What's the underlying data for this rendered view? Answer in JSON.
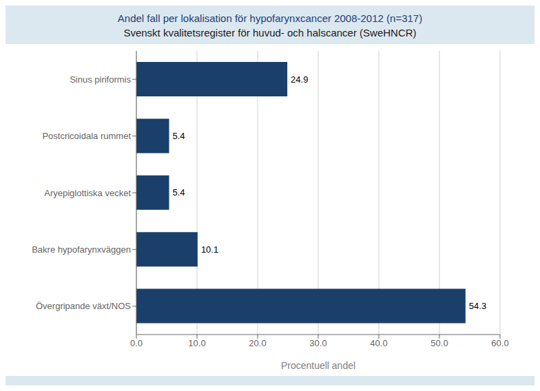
{
  "chart_data": {
    "type": "bar",
    "orientation": "horizontal",
    "title": "Andel fall per lokalisation för hypofarynxcancer 2008-2012 (n=317)",
    "subtitle": "Svenskt kvalitetsregister för huvud- och halscancer (SweHNCR)",
    "categories": [
      "Övergripande växt/NOS",
      "Bakre hypofarynxväggen",
      "Aryepiglottiska vecket",
      "Postcricoidala rummet",
      "Sinus piriformis"
    ],
    "values": [
      54.3,
      10.1,
      5.4,
      5.4,
      24.9
    ],
    "color": "#1b3f6b",
    "xlabel": "Procentuell andel",
    "xlim": [
      0,
      60
    ],
    "xticks": [
      {
        "value": 0,
        "label": "0.0"
      },
      {
        "value": 10,
        "label": "10.0"
      },
      {
        "value": 20,
        "label": "20.0"
      },
      {
        "value": 30,
        "label": "30.0"
      },
      {
        "value": 40,
        "label": "40.0"
      },
      {
        "value": 50,
        "label": "50.0"
      },
      {
        "value": 60,
        "label": "60.0"
      }
    ],
    "grid": true,
    "data_labels": true
  }
}
